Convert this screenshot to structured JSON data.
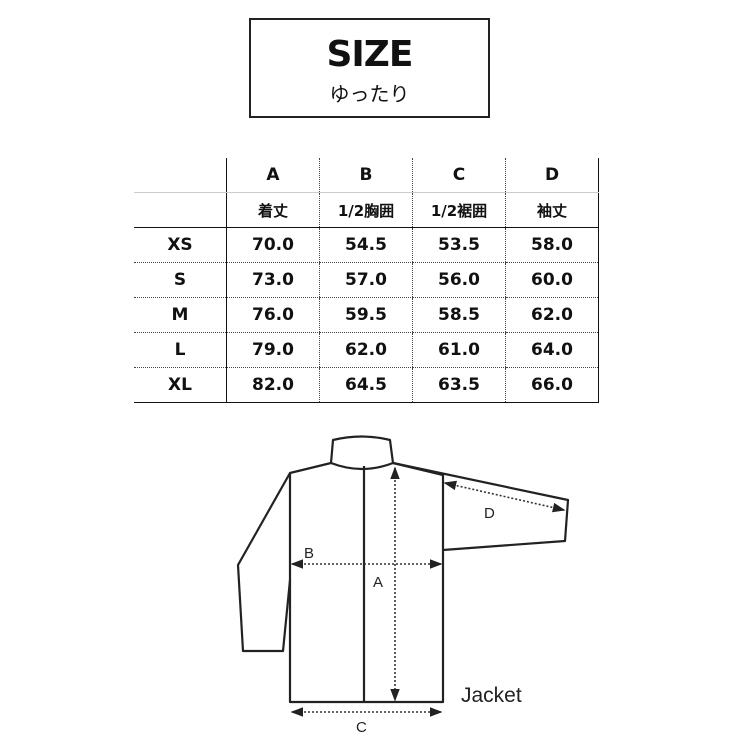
{
  "header": {
    "title": "SIZE",
    "subtitle": "ゆったり"
  },
  "table": {
    "columns": [
      "A",
      "B",
      "C",
      "D"
    ],
    "column_labels": [
      "着丈",
      "1/2胸囲",
      "1/2裾囲",
      "袖丈"
    ],
    "rows": [
      {
        "size": "XS",
        "values": [
          "70.0",
          "54.5",
          "53.5",
          "58.0"
        ]
      },
      {
        "size": "S",
        "values": [
          "73.0",
          "57.0",
          "56.0",
          "60.0"
        ]
      },
      {
        "size": "M",
        "values": [
          "76.0",
          "59.5",
          "58.5",
          "62.0"
        ]
      },
      {
        "size": "L",
        "values": [
          "79.0",
          "62.0",
          "61.0",
          "64.0"
        ]
      },
      {
        "size": "XL",
        "values": [
          "82.0",
          "64.5",
          "63.5",
          "66.0"
        ]
      }
    ]
  },
  "diagram": {
    "garment_label": "Jacket",
    "labels": {
      "a": "A",
      "b": "B",
      "c": "C",
      "d": "D"
    }
  }
}
